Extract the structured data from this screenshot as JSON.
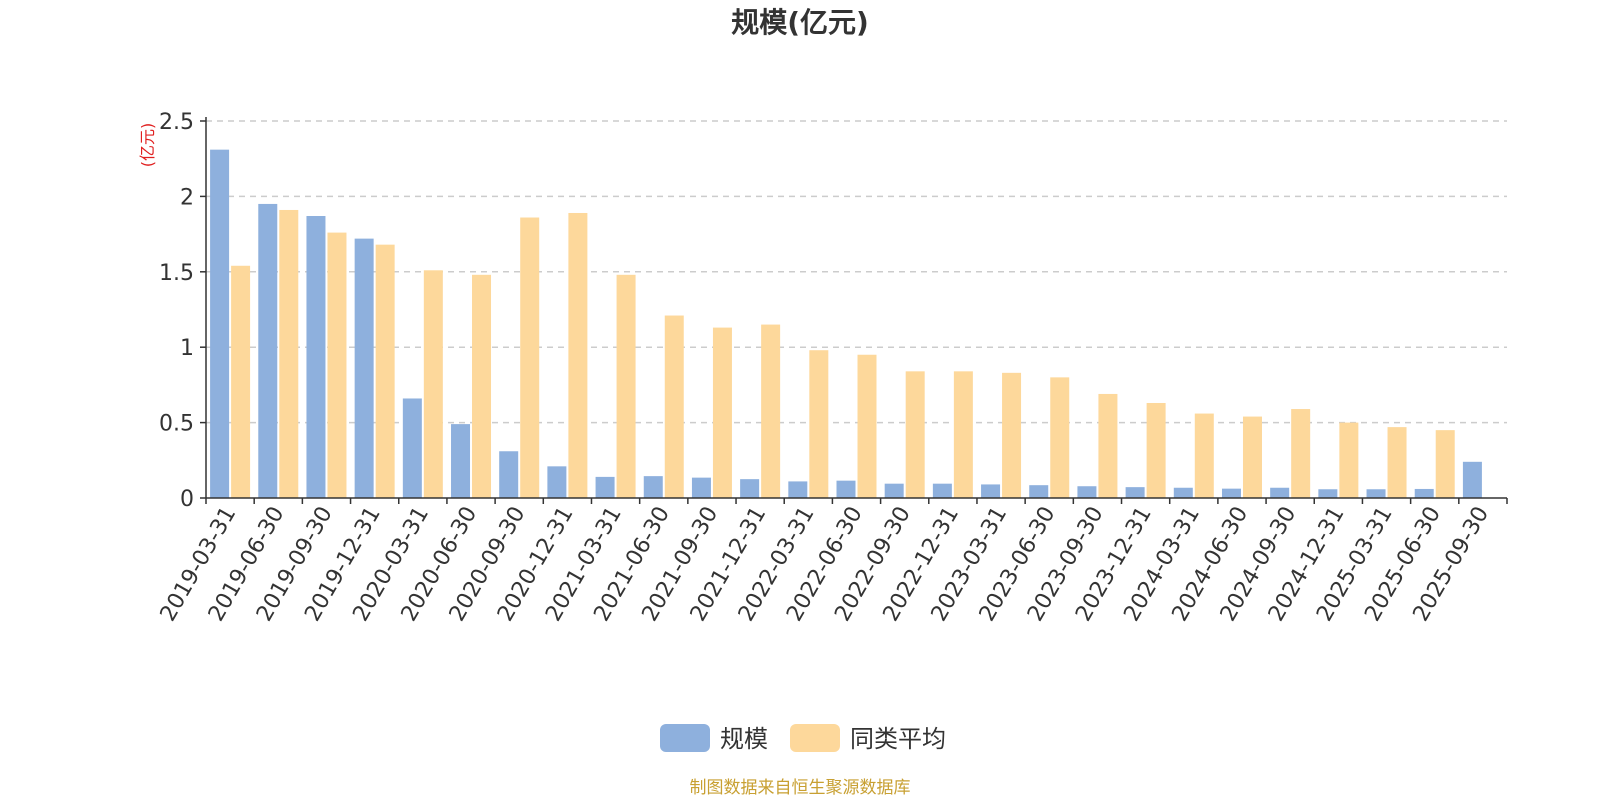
{
  "chart_data": {
    "type": "bar",
    "title": "规模(亿元)",
    "ylabel": "(亿元)",
    "ylim": [
      0,
      2.5
    ],
    "yticks": [
      "0",
      "0.5",
      "1",
      "1.5",
      "2",
      "2.5"
    ],
    "grid": true,
    "legend_position": "bottom",
    "categories": [
      "2019-03-31",
      "2019-06-30",
      "2019-09-30",
      "2019-12-31",
      "2020-03-31",
      "2020-06-30",
      "2020-09-30",
      "2020-12-31",
      "2021-03-31",
      "2021-06-30",
      "2021-09-30",
      "2021-12-31",
      "2022-03-31",
      "2022-06-30",
      "2022-09-30",
      "2022-12-31",
      "2023-03-31",
      "2023-06-30",
      "2023-09-30",
      "2023-12-31",
      "2024-03-31",
      "2024-06-30",
      "2024-09-30",
      "2024-12-31",
      "2025-03-31",
      "2025-06-30",
      "2025-09-30"
    ],
    "series": [
      {
        "name": "规模",
        "color": "#8eb0dd",
        "values": [
          2.31,
          1.95,
          1.87,
          1.72,
          0.66,
          0.49,
          0.31,
          0.21,
          0.14,
          0.145,
          0.135,
          0.125,
          0.11,
          0.115,
          0.095,
          0.095,
          0.09,
          0.085,
          0.078,
          0.072,
          0.068,
          0.062,
          0.068,
          0.058,
          0.058,
          0.06,
          0.24
        ]
      },
      {
        "name": "同类平均",
        "color": "#fdd89b",
        "values": [
          1.54,
          1.91,
          1.76,
          1.68,
          1.51,
          1.48,
          1.86,
          1.89,
          1.48,
          1.21,
          1.13,
          1.15,
          0.98,
          0.95,
          0.84,
          0.84,
          0.83,
          0.8,
          0.69,
          0.63,
          0.56,
          0.54,
          0.59,
          0.5,
          0.47,
          0.45,
          null
        ]
      }
    ]
  },
  "source_text": "制图数据来自恒生聚源数据库",
  "colors": {
    "source_text": "#c8a032",
    "axis": "#333333",
    "grid": "#cccccc",
    "ylabel": "#e02020"
  }
}
